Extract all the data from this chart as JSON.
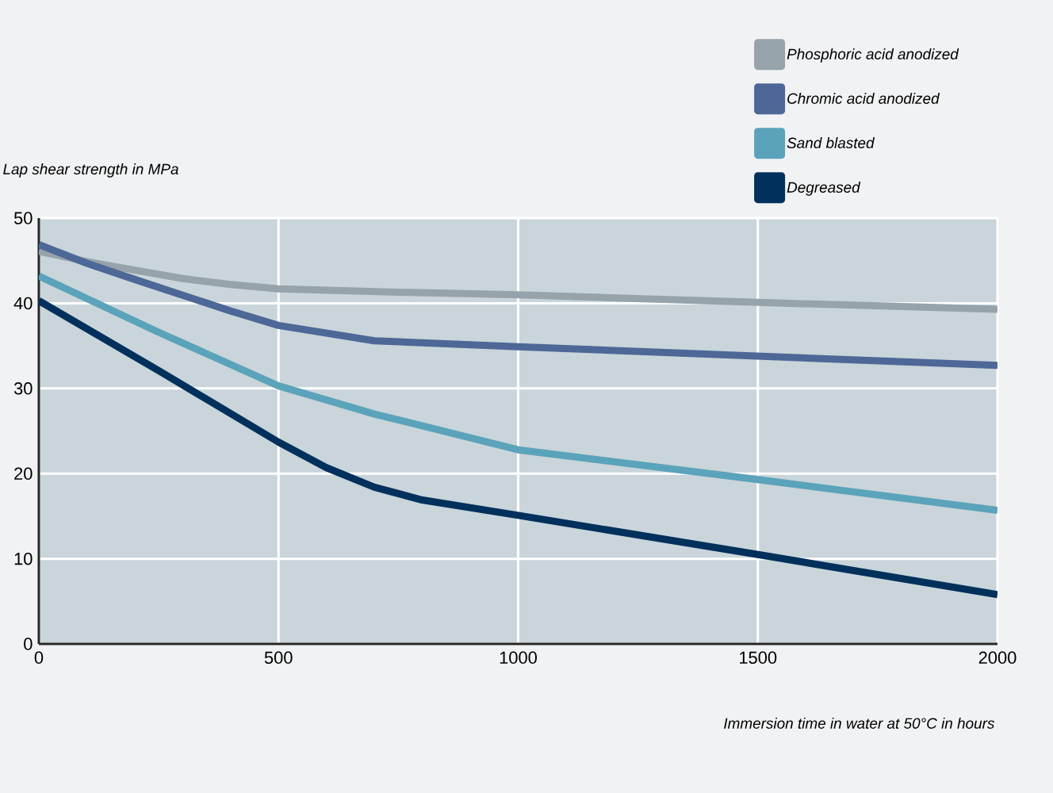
{
  "chart_data": {
    "type": "line",
    "xlabel": "Immersion time in water at 50°C in hours",
    "ylabel": "Lap shear strength in MPa",
    "xlim": [
      0,
      2000
    ],
    "xticks": [
      0,
      500,
      1000,
      1500,
      2000
    ],
    "ylim": [
      0,
      50
    ],
    "yticks": [
      0,
      10,
      20,
      30,
      40,
      50
    ],
    "grid": true,
    "legend": "top right",
    "marker": "none",
    "line_style": "solid",
    "series": [
      {
        "name": "Phosphoric acid anodized",
        "color": "#97a3aa",
        "x": [
          0,
          100,
          200,
          300,
          400,
          500,
          750,
          1000,
          1500,
          2000
        ],
        "values": [
          46.1,
          44.9,
          43.9,
          42.9,
          42.2,
          41.7,
          41.3,
          41.0,
          40.1,
          39.3
        ]
      },
      {
        "name": "Chromic acid anodized",
        "color": "#4d6797",
        "x": [
          0,
          100,
          200,
          400,
          500,
          700,
          1000,
          1500,
          2000
        ],
        "values": [
          46.9,
          44.7,
          42.8,
          39.1,
          37.4,
          35.6,
          34.9,
          33.8,
          32.7
        ]
      },
      {
        "name": "Sand blasted",
        "color": "#5ba3ba",
        "x": [
          0,
          250,
          500,
          700,
          1000,
          1500,
          2000
        ],
        "values": [
          43.2,
          36.6,
          30.3,
          27.0,
          22.8,
          19.3,
          15.7
        ]
      },
      {
        "name": "Degreased",
        "color": "#00305c",
        "x": [
          0,
          250,
          500,
          600,
          700,
          800,
          1000,
          1500,
          2000
        ],
        "values": [
          40.3,
          32.1,
          23.7,
          20.7,
          18.4,
          16.9,
          15.1,
          10.5,
          5.8
        ]
      }
    ]
  }
}
